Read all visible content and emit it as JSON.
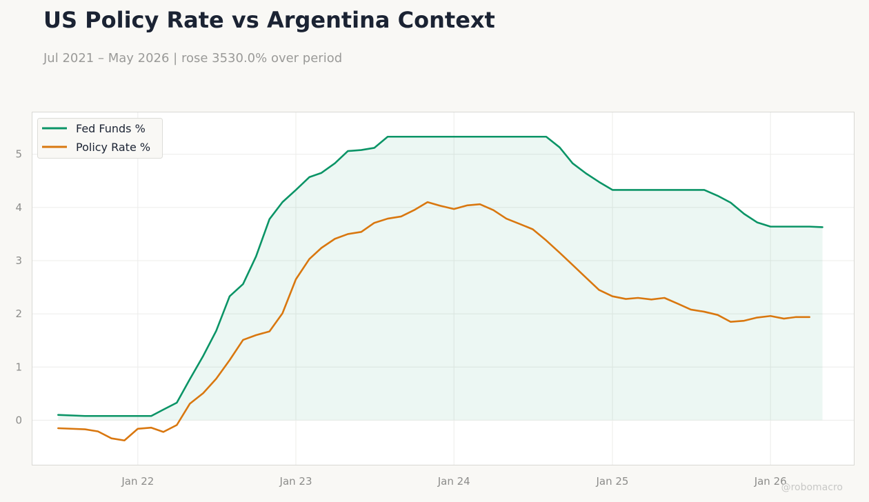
{
  "title": "US Policy Rate vs Argentina Context",
  "subtitle": "Jul 2021 – May 2026 | rose 3530.0% over period",
  "watermark": "@robomacro",
  "colors": {
    "fed": "#0a9466",
    "policy": "#d9770f",
    "fill": "#0a9466",
    "grid": "#ececea",
    "frame": "#d8d8d4",
    "background": "#ffffff"
  },
  "chart_data": {
    "type": "line",
    "title": "US Policy Rate vs Argentina Context",
    "xlabel": "",
    "ylabel": "",
    "xlim": [
      "2021-05-01",
      "2026-07-14"
    ],
    "ylim": [
      -0.85,
      5.8
    ],
    "x_ticks": [
      {
        "date": "2022-01-01",
        "label": "Jan 22"
      },
      {
        "date": "2023-01-01",
        "label": "Jan 23"
      },
      {
        "date": "2024-01-01",
        "label": "Jan 24"
      },
      {
        "date": "2025-01-01",
        "label": "Jan 25"
      },
      {
        "date": "2026-01-01",
        "label": "Jan 26"
      }
    ],
    "y_ticks": [
      0,
      1,
      2,
      3,
      4,
      5
    ],
    "grid": true,
    "legend_position": "top-left",
    "series": [
      {
        "name": "Fed Funds %",
        "color": "#0a9466",
        "fill_to_zero": true,
        "points": [
          [
            "2021-07-01",
            0.1
          ],
          [
            "2021-09-01",
            0.08
          ],
          [
            "2021-11-01",
            0.08
          ],
          [
            "2022-01-01",
            0.08
          ],
          [
            "2022-02-01",
            0.08
          ],
          [
            "2022-03-01",
            0.2
          ],
          [
            "2022-04-01",
            0.33
          ],
          [
            "2022-05-01",
            0.77
          ],
          [
            "2022-06-01",
            1.21
          ],
          [
            "2022-07-01",
            1.68
          ],
          [
            "2022-08-01",
            2.33
          ],
          [
            "2022-09-01",
            2.56
          ],
          [
            "2022-10-01",
            3.08
          ],
          [
            "2022-11-01",
            3.78
          ],
          [
            "2022-12-01",
            4.1
          ],
          [
            "2023-01-01",
            4.33
          ],
          [
            "2023-02-01",
            4.57
          ],
          [
            "2023-03-01",
            4.65
          ],
          [
            "2023-04-01",
            4.83
          ],
          [
            "2023-05-01",
            5.06
          ],
          [
            "2023-06-01",
            5.08
          ],
          [
            "2023-07-01",
            5.12
          ],
          [
            "2023-08-01",
            5.33
          ],
          [
            "2023-09-01",
            5.33
          ],
          [
            "2023-10-01",
            5.33
          ],
          [
            "2023-11-01",
            5.33
          ],
          [
            "2023-12-01",
            5.33
          ],
          [
            "2024-01-01",
            5.33
          ],
          [
            "2024-02-01",
            5.33
          ],
          [
            "2024-03-01",
            5.33
          ],
          [
            "2024-04-01",
            5.33
          ],
          [
            "2024-05-01",
            5.33
          ],
          [
            "2024-06-01",
            5.33
          ],
          [
            "2024-07-01",
            5.33
          ],
          [
            "2024-08-01",
            5.33
          ],
          [
            "2024-09-01",
            5.13
          ],
          [
            "2024-10-01",
            4.83
          ],
          [
            "2024-11-01",
            4.64
          ],
          [
            "2024-12-01",
            4.48
          ],
          [
            "2025-01-01",
            4.33
          ],
          [
            "2025-02-01",
            4.33
          ],
          [
            "2025-03-01",
            4.33
          ],
          [
            "2025-04-01",
            4.33
          ],
          [
            "2025-05-01",
            4.33
          ],
          [
            "2025-06-01",
            4.33
          ],
          [
            "2025-07-01",
            4.33
          ],
          [
            "2025-08-01",
            4.33
          ],
          [
            "2025-09-01",
            4.22
          ],
          [
            "2025-10-01",
            4.09
          ],
          [
            "2025-11-01",
            3.88
          ],
          [
            "2025-12-01",
            3.72
          ],
          [
            "2026-01-01",
            3.64
          ],
          [
            "2026-02-01",
            3.64
          ],
          [
            "2026-03-01",
            3.64
          ],
          [
            "2026-04-01",
            3.64
          ],
          [
            "2026-05-01",
            3.63
          ]
        ]
      },
      {
        "name": "Policy Rate %",
        "color": "#d9770f",
        "fill_to_zero": false,
        "points": [
          [
            "2021-07-01",
            -0.15
          ],
          [
            "2021-09-01",
            -0.17
          ],
          [
            "2021-10-01",
            -0.21
          ],
          [
            "2021-11-01",
            -0.34
          ],
          [
            "2021-12-01",
            -0.38
          ],
          [
            "2022-01-01",
            -0.16
          ],
          [
            "2022-02-01",
            -0.14
          ],
          [
            "2022-03-01",
            -0.22
          ],
          [
            "2022-04-01",
            -0.09
          ],
          [
            "2022-05-01",
            0.31
          ],
          [
            "2022-06-01",
            0.51
          ],
          [
            "2022-07-01",
            0.78
          ],
          [
            "2022-08-01",
            1.13
          ],
          [
            "2022-09-01",
            1.51
          ],
          [
            "2022-10-01",
            1.6
          ],
          [
            "2022-11-01",
            1.67
          ],
          [
            "2022-12-01",
            2.01
          ],
          [
            "2023-01-01",
            2.65
          ],
          [
            "2023-02-01",
            3.03
          ],
          [
            "2023-03-01",
            3.24
          ],
          [
            "2023-04-01",
            3.41
          ],
          [
            "2023-05-01",
            3.5
          ],
          [
            "2023-06-01",
            3.54
          ],
          [
            "2023-07-01",
            3.71
          ],
          [
            "2023-08-01",
            3.79
          ],
          [
            "2023-09-01",
            3.83
          ],
          [
            "2023-10-01",
            3.95
          ],
          [
            "2023-11-01",
            4.1
          ],
          [
            "2023-12-01",
            4.03
          ],
          [
            "2024-01-01",
            3.97
          ],
          [
            "2024-02-01",
            4.04
          ],
          [
            "2024-03-01",
            4.06
          ],
          [
            "2024-04-01",
            3.95
          ],
          [
            "2024-05-01",
            3.79
          ],
          [
            "2024-06-01",
            3.69
          ],
          [
            "2024-07-01",
            3.59
          ],
          [
            "2024-08-01",
            3.38
          ],
          [
            "2024-09-01",
            3.15
          ],
          [
            "2024-10-01",
            2.92
          ],
          [
            "2024-11-01",
            2.68
          ],
          [
            "2024-12-01",
            2.45
          ],
          [
            "2025-01-01",
            2.33
          ],
          [
            "2025-02-01",
            2.28
          ],
          [
            "2025-03-01",
            2.3
          ],
          [
            "2025-04-01",
            2.27
          ],
          [
            "2025-05-01",
            2.3
          ],
          [
            "2025-06-01",
            2.19
          ],
          [
            "2025-07-01",
            2.08
          ],
          [
            "2025-08-01",
            2.04
          ],
          [
            "2025-09-01",
            1.98
          ],
          [
            "2025-10-01",
            1.85
          ],
          [
            "2025-11-01",
            1.87
          ],
          [
            "2025-12-01",
            1.93
          ],
          [
            "2026-01-01",
            1.96
          ],
          [
            "2026-02-01",
            1.91
          ],
          [
            "2026-03-01",
            1.94
          ],
          [
            "2026-04-01",
            1.94
          ]
        ]
      }
    ]
  }
}
